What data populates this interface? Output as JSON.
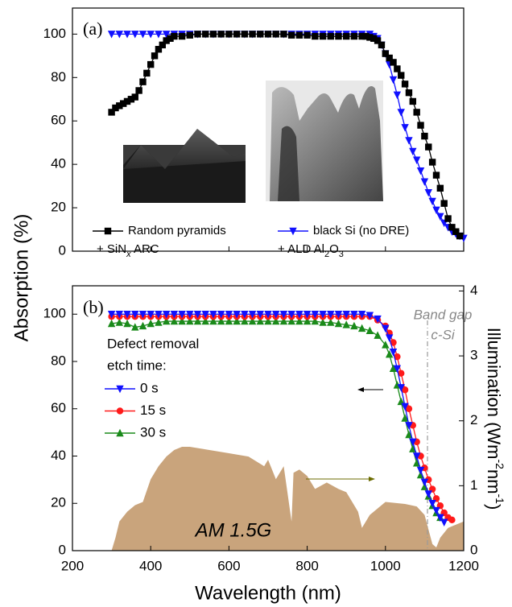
{
  "chart_data": [
    {
      "type": "line",
      "label": "(a)",
      "xlim": [
        200,
        1200
      ],
      "ylim": [
        0,
        112
      ],
      "yticks": [
        0,
        20,
        40,
        60,
        80,
        100
      ],
      "series": [
        {
          "name": "Random pyramids",
          "legend_line2": [
            "+ SiN",
            "x",
            " ARC"
          ],
          "color": "#000000",
          "marker": "square",
          "x": [
            300,
            310,
            320,
            330,
            340,
            350,
            360,
            370,
            380,
            390,
            400,
            410,
            420,
            430,
            440,
            450,
            460,
            480,
            500,
            520,
            540,
            560,
            580,
            600,
            620,
            640,
            660,
            680,
            700,
            720,
            740,
            760,
            780,
            800,
            820,
            840,
            860,
            880,
            900,
            920,
            940,
            950,
            960,
            970,
            980,
            990,
            1000,
            1010,
            1020,
            1030,
            1040,
            1050,
            1060,
            1070,
            1080,
            1090,
            1100,
            1110,
            1120,
            1130,
            1140,
            1150,
            1160,
            1170,
            1180,
            1190
          ],
          "values": [
            64,
            66,
            67,
            68,
            69,
            70,
            71,
            74,
            78,
            82,
            86,
            90,
            93,
            95,
            97,
            98,
            99,
            99,
            99.5,
            100,
            100,
            100,
            100,
            100,
            100,
            100,
            100,
            100,
            100,
            100,
            100,
            99.5,
            99.5,
            99.5,
            99,
            99,
            99,
            99,
            99,
            99,
            99,
            99,
            98.5,
            98,
            97,
            95,
            91,
            89,
            87,
            84,
            81,
            77,
            73,
            69,
            64,
            58,
            53,
            48,
            41,
            35,
            29,
            22,
            15,
            11,
            9,
            7
          ]
        },
        {
          "name": "black Si (no DRE)",
          "legend_line2": [
            "+ ALD Al",
            "2",
            "O",
            "3"
          ],
          "color": "#1010ff",
          "marker": "tri-down",
          "x": [
            300,
            320,
            340,
            360,
            380,
            400,
            420,
            440,
            460,
            480,
            500,
            520,
            540,
            560,
            580,
            600,
            620,
            640,
            660,
            680,
            700,
            720,
            740,
            760,
            780,
            800,
            820,
            840,
            860,
            880,
            900,
            920,
            940,
            960,
            970,
            980,
            990,
            1000,
            1010,
            1020,
            1030,
            1040,
            1050,
            1060,
            1070,
            1080,
            1090,
            1100,
            1110,
            1120,
            1130,
            1140,
            1150,
            1160,
            1170,
            1180,
            1190,
            1200
          ],
          "values": [
            100,
            100,
            100,
            100,
            100,
            100,
            100,
            100,
            100,
            100,
            100,
            100,
            100,
            100,
            100,
            100,
            100,
            100,
            100,
            100,
            100,
            100,
            100,
            100,
            100,
            100,
            100,
            100,
            100,
            100,
            100,
            100,
            100,
            100,
            99,
            98,
            95,
            91,
            86,
            79,
            72,
            64,
            57,
            51,
            46,
            42,
            37,
            32,
            27,
            23,
            19,
            16,
            13,
            11,
            9,
            8,
            7,
            6
          ]
        }
      ]
    },
    {
      "type": "line",
      "label": "(b)",
      "xlabel": "Wavelength (nm)",
      "ylabel": "Absorption (%)",
      "y2label_parts": [
        "Illumination (Wm",
        "-2",
        "nm",
        "-1",
        ")"
      ],
      "legend_title": [
        "Defect removal",
        "etch time:"
      ],
      "band_gap_label": [
        "Band gap",
        "c-Si"
      ],
      "spectrum_label": "AM 1.5G",
      "xlim": [
        200,
        1200
      ],
      "xticks": [
        200,
        400,
        600,
        800,
        1000,
        1200
      ],
      "ylim": [
        0,
        112
      ],
      "yticks": [
        0,
        20,
        40,
        60,
        80,
        100
      ],
      "y2lim": [
        0,
        4.08
      ],
      "y2ticks": [
        0,
        1,
        2,
        3,
        4
      ],
      "series": [
        {
          "name": "0 s",
          "color": "#1010ff",
          "marker": "tri-down",
          "x": [
            300,
            320,
            340,
            360,
            380,
            400,
            420,
            440,
            460,
            480,
            500,
            520,
            540,
            560,
            580,
            600,
            620,
            640,
            660,
            680,
            700,
            720,
            740,
            760,
            780,
            800,
            820,
            840,
            860,
            880,
            900,
            920,
            940,
            960,
            980,
            1000,
            1010,
            1020,
            1030,
            1040,
            1050,
            1060,
            1070,
            1080,
            1090,
            1100,
            1110,
            1120,
            1130,
            1140,
            1150
          ],
          "values": [
            100,
            100,
            100,
            100,
            100,
            100,
            100,
            100,
            100,
            100,
            100,
            100,
            100,
            100,
            100,
            100,
            100,
            100,
            100,
            100,
            100,
            100,
            100,
            100,
            100,
            100,
            100,
            100,
            100,
            100,
            100,
            100,
            100,
            99.5,
            98,
            94,
            90,
            84,
            77,
            69,
            61,
            53,
            46,
            40,
            34,
            29,
            24,
            20,
            17,
            14,
            12
          ]
        },
        {
          "name": "15 s",
          "color": "#ff1a1a",
          "marker": "circle",
          "x": [
            300,
            320,
            340,
            360,
            380,
            400,
            420,
            440,
            460,
            480,
            500,
            520,
            540,
            560,
            580,
            600,
            620,
            640,
            660,
            680,
            700,
            720,
            740,
            760,
            780,
            800,
            820,
            840,
            860,
            880,
            900,
            920,
            940,
            960,
            980,
            1000,
            1010,
            1020,
            1030,
            1040,
            1050,
            1060,
            1070,
            1080,
            1090,
            1100,
            1110,
            1120,
            1130,
            1140,
            1150,
            1160,
            1170
          ],
          "values": [
            99,
            99,
            99,
            99,
            99,
            99,
            99,
            99,
            99,
            99,
            99,
            99,
            99,
            99,
            99,
            99,
            99,
            99,
            99,
            99,
            99,
            99,
            99,
            99,
            99,
            99,
            99,
            99,
            99,
            99,
            99,
            99,
            99,
            99,
            97.5,
            95,
            92,
            88,
            82,
            75,
            68,
            60,
            53,
            46,
            40,
            35,
            30,
            26,
            22,
            19,
            16,
            14,
            13
          ]
        },
        {
          "name": "30 s",
          "color": "#1a8a1a",
          "marker": "tri-up",
          "x": [
            300,
            320,
            340,
            360,
            380,
            400,
            420,
            440,
            460,
            480,
            500,
            520,
            540,
            560,
            580,
            600,
            620,
            640,
            660,
            680,
            700,
            720,
            740,
            760,
            780,
            800,
            820,
            840,
            860,
            880,
            900,
            920,
            940,
            960,
            980,
            1000,
            1010,
            1020,
            1030,
            1040,
            1050,
            1060,
            1070,
            1080,
            1090,
            1100,
            1110,
            1120,
            1130,
            1140
          ],
          "values": [
            96,
            96.5,
            96,
            94.5,
            95,
            96,
            96.5,
            97,
            97,
            97,
            97,
            97,
            97,
            97,
            97,
            97,
            97,
            97,
            97,
            97,
            97,
            97,
            97,
            97,
            97,
            97,
            97,
            96.5,
            96.5,
            96,
            95.5,
            95,
            94,
            93,
            91,
            87,
            83,
            77,
            70,
            63,
            56,
            49,
            43,
            37,
            32,
            27,
            23,
            19,
            16,
            14
          ]
        }
      ],
      "area": {
        "axis": "y2",
        "color": "#c9a47c",
        "x": [
          300,
          310,
          320,
          340,
          360,
          380,
          400,
          420,
          440,
          460,
          480,
          500,
          550,
          600,
          650,
          690,
          700,
          720,
          740,
          760,
          765,
          780,
          800,
          820,
          850,
          880,
          900,
          930,
          940,
          960,
          1000,
          1050,
          1080,
          1100,
          1120,
          1130,
          1140,
          1160,
          1180,
          1200
        ],
        "values": [
          0,
          0.2,
          0.45,
          0.6,
          0.7,
          0.75,
          1.1,
          1.3,
          1.45,
          1.55,
          1.6,
          1.6,
          1.55,
          1.5,
          1.45,
          1.3,
          1.4,
          1.1,
          1.3,
          0.45,
          1.2,
          1.25,
          1.15,
          0.95,
          1.05,
          0.95,
          0.9,
          0.6,
          0.35,
          0.55,
          0.75,
          0.72,
          0.68,
          0.55,
          0.1,
          0.05,
          0.2,
          0.35,
          0.4,
          0.45
        ]
      }
    }
  ]
}
